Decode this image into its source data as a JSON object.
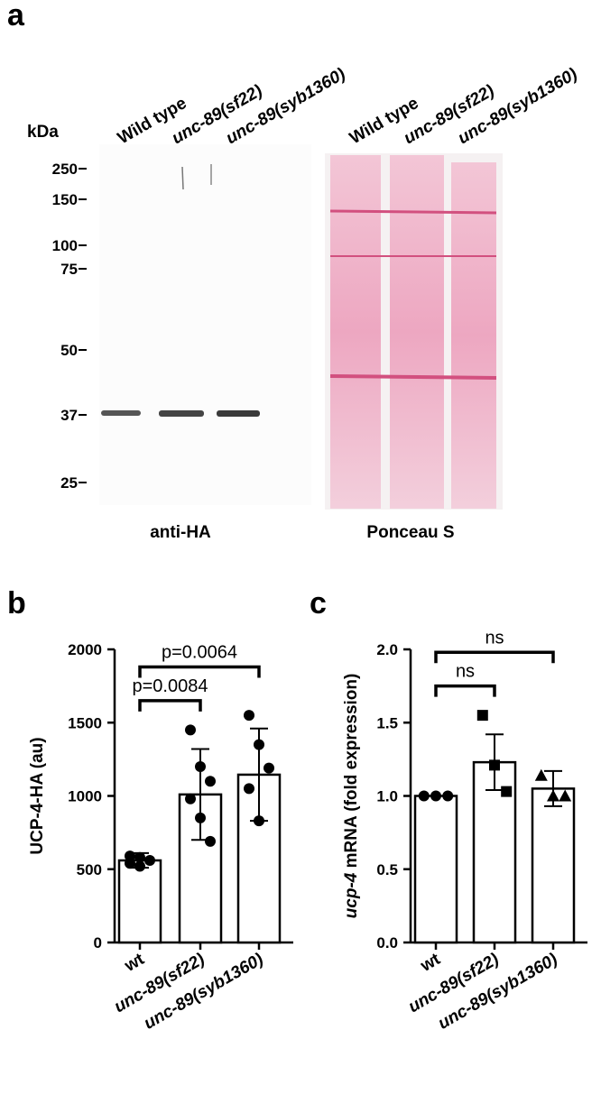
{
  "panel_a": {
    "label": "a",
    "unit": "kDa",
    "markers": [
      "250",
      "150",
      "100",
      "75",
      "50",
      "37",
      "25"
    ],
    "lanes": [
      "Wild type",
      "unc-89(sf22)",
      "unc-89(syb1360)"
    ],
    "captions": [
      "anti-HA",
      "Ponceau S"
    ]
  },
  "chart_data": [
    {
      "type": "bar",
      "panel": "b",
      "y_label": [
        "UCP-4-HA (au)"
      ],
      "categories": [
        "wt",
        "unc-89(sf22)",
        "unc-89(syb1360)"
      ],
      "values": [
        560,
        1010,
        1145
      ],
      "errors": [
        50,
        310,
        315
      ],
      "points": [
        [
          590,
          580,
          560,
          540,
          520
        ],
        [
          1450,
          1200,
          1100,
          980,
          850,
          690
        ],
        [
          1550,
          1350,
          1190,
          1050,
          830
        ]
      ],
      "markers": [
        "circle",
        "circle",
        "circle"
      ],
      "color": "#ffffff",
      "ylim": [
        0,
        2000
      ],
      "yticks": [
        0,
        500,
        1000,
        1500,
        2000
      ],
      "comparisons": [
        {
          "label": "p=0.0084",
          "y": 1650
        },
        {
          "label": "p=0.0064",
          "y": 1880
        }
      ]
    },
    {
      "type": "bar",
      "panel": "c",
      "y_label": [
        "ucp-4",
        " mRNA (fold expression)"
      ],
      "categories": [
        "wt",
        "unc-89(sf22)",
        "unc-89(syb1360)"
      ],
      "values": [
        1.0,
        1.23,
        1.05
      ],
      "errors": [
        0.0,
        0.19,
        0.12
      ],
      "points": [
        [
          1.0,
          1.0,
          1.0
        ],
        [
          1.55,
          1.21,
          1.03
        ],
        [
          1.14,
          1.0,
          1.0
        ]
      ],
      "markers": [
        "circle",
        "square",
        "triangle"
      ],
      "color": "#ffffff",
      "ylim": [
        0,
        2.0
      ],
      "yticks": [
        {
          "value": 0,
          "label": "0.0"
        },
        {
          "value": 0.5,
          "label": "0.5"
        },
        {
          "value": 1.0,
          "label": "1.0"
        },
        {
          "value": 1.5,
          "label": "1.5"
        },
        {
          "value": 2.0,
          "label": "2.0"
        }
      ],
      "comparisons": [
        {
          "label": "ns",
          "y": 1.75
        },
        {
          "label": "ns",
          "y": 1.98
        }
      ]
    }
  ]
}
